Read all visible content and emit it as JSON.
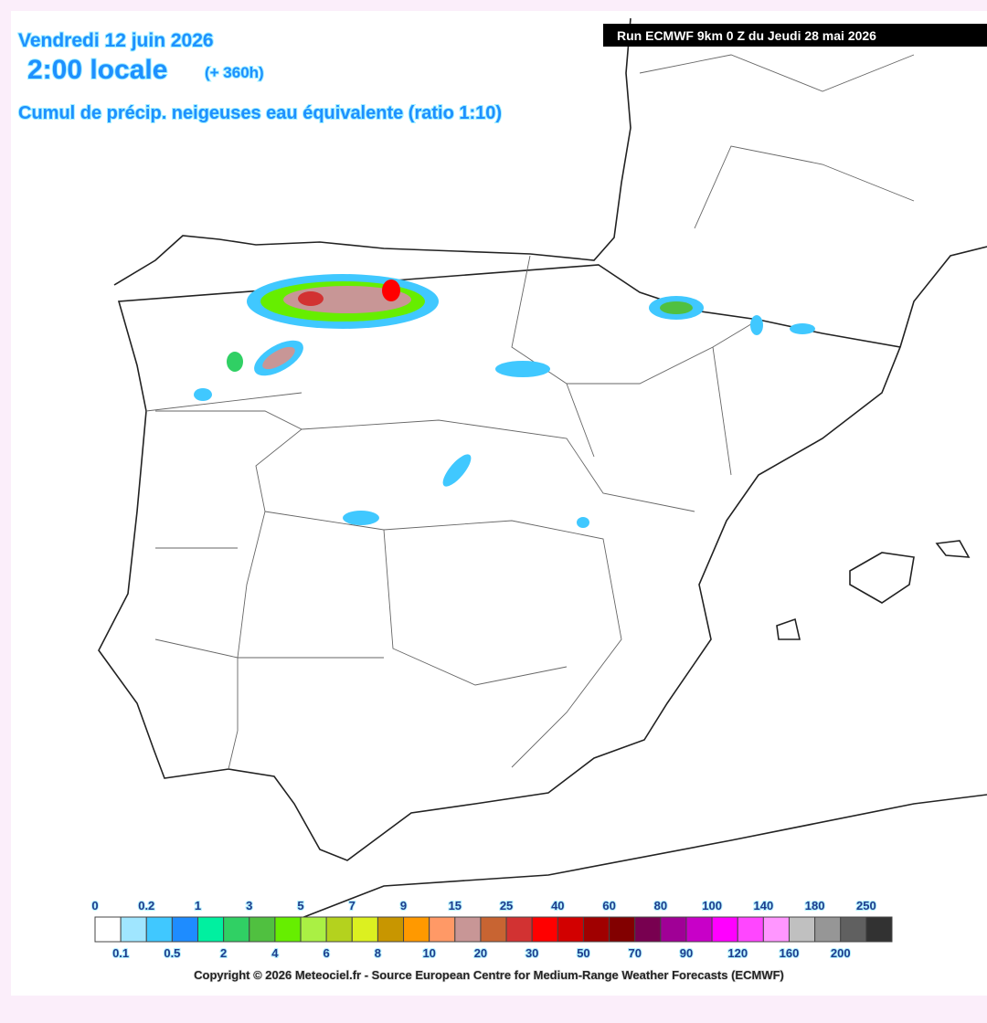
{
  "header": {
    "date": "Vendredi 12 juin 2026",
    "time": "2:00 locale",
    "lead": "(+ 360h)",
    "field": "Cumul de précip. neigeuses  eau équivalente (ratio 1:10)",
    "run": "Run ECMWF 9km 0 Z du Jeudi 28 mai 2026"
  },
  "legend": {
    "labels": [
      "0",
      "0.1",
      "0.2",
      "0.5",
      "1",
      "2",
      "3",
      "4",
      "5",
      "6",
      "7",
      "8",
      "9",
      "10",
      "15",
      "20",
      "25",
      "30",
      "40",
      "50",
      "60",
      "70",
      "80",
      "90",
      "100",
      "120",
      "140",
      "160",
      "180",
      "200",
      "250"
    ],
    "colors": [
      "#ffffff",
      "#a0e6ff",
      "#40c8ff",
      "#1e8cff",
      "#00f0a0",
      "#30d064",
      "#50c040",
      "#66ee00",
      "#aaf044",
      "#b4d21e",
      "#dcf020",
      "#c89600",
      "#ff9900",
      "#ff9966",
      "#c89696",
      "#c86432",
      "#d23232",
      "#ff0000",
      "#d20000",
      "#a00000",
      "#820000",
      "#780050",
      "#a00096",
      "#c800c8",
      "#ff00ff",
      "#ff46ff",
      "#ff96ff",
      "#c0c0c0",
      "#969696",
      "#606060",
      "#323232"
    ]
  },
  "footer": {
    "copyright": "Copyright © 2026 Meteociel.fr - Source European Centre for Medium-Range Weather Forecasts (ECMWF)"
  }
}
